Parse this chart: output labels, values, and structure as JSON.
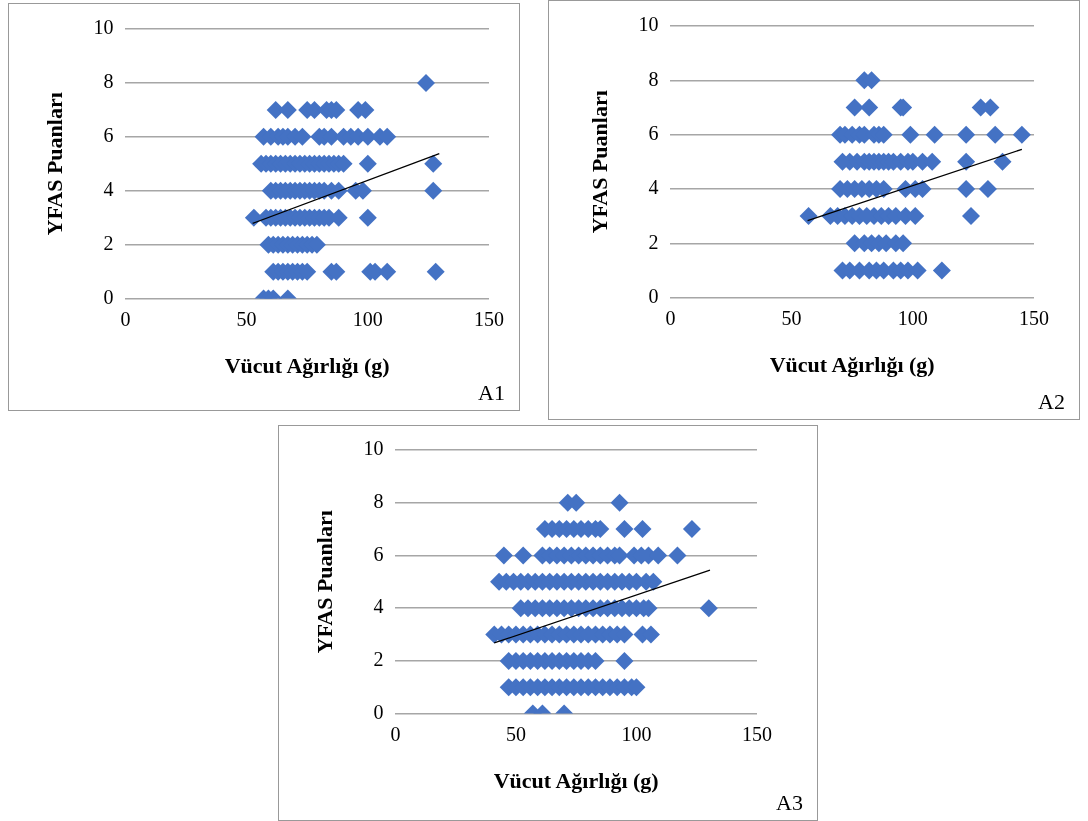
{
  "chart_data": [
    {
      "type": "scatter",
      "xlabel": "Vücut Ağırlığı (g)",
      "ylabel": "YFAS Puanları",
      "annotations": [
        "A1"
      ],
      "xlim": [
        0,
        150
      ],
      "xticks": [
        0,
        50,
        100,
        150
      ],
      "ylim": [
        0,
        10
      ],
      "yticks": [
        0,
        2,
        4,
        6,
        8,
        10
      ],
      "grid": "y",
      "series": [
        {
          "marker": "diamond",
          "color": "#4472c4",
          "x": [
            124,
            62,
            67,
            75,
            78,
            83,
            85,
            87,
            96,
            99,
            57,
            60,
            63,
            65,
            67,
            70,
            73,
            80,
            82,
            85,
            90,
            93,
            96,
            100,
            105,
            108,
            56,
            58,
            60,
            62,
            64,
            66,
            68,
            70,
            72,
            74,
            76,
            78,
            80,
            82,
            84,
            86,
            88,
            90,
            100,
            127,
            60,
            62,
            64,
            66,
            68,
            70,
            72,
            74,
            76,
            78,
            80,
            82,
            85,
            88,
            95,
            98,
            127,
            53,
            58,
            60,
            62,
            64,
            66,
            68,
            70,
            72,
            74,
            76,
            78,
            80,
            82,
            84,
            88,
            100,
            59,
            61,
            63,
            65,
            67,
            69,
            71,
            73,
            75,
            77,
            79,
            61,
            63,
            65,
            67,
            69,
            71,
            73,
            75,
            85,
            87,
            101,
            103,
            108,
            128,
            57,
            59,
            61,
            67
          ],
          "values": [
            8,
            7,
            7,
            7,
            7,
            7,
            7,
            7,
            7,
            7,
            6,
            6,
            6,
            6,
            6,
            6,
            6,
            6,
            6,
            6,
            6,
            6,
            6,
            6,
            6,
            6,
            5,
            5,
            5,
            5,
            5,
            5,
            5,
            5,
            5,
            5,
            5,
            5,
            5,
            5,
            5,
            5,
            5,
            5,
            5,
            5,
            4,
            4,
            4,
            4,
            4,
            4,
            4,
            4,
            4,
            4,
            4,
            4,
            4,
            4,
            4,
            4,
            4,
            3,
            3,
            3,
            3,
            3,
            3,
            3,
            3,
            3,
            3,
            3,
            3,
            3,
            3,
            3,
            3,
            3,
            2,
            2,
            2,
            2,
            2,
            2,
            2,
            2,
            2,
            2,
            2,
            1,
            1,
            1,
            1,
            1,
            1,
            1,
            1,
            1,
            1,
            1,
            1,
            1,
            1,
            0,
            0,
            0,
            0
          ]
        },
        {
          "type": "line",
          "marker": "none",
          "color": "#000000",
          "x": [
            52.5,
            129.5
          ],
          "values": [
            2.79,
            5.38
          ]
        }
      ]
    },
    {
      "type": "scatter",
      "xlabel": "Vücut Ağırlığı (g)",
      "ylabel": "YFAS Puanları",
      "annotations": [
        "A2"
      ],
      "xlim": [
        0,
        150
      ],
      "xticks": [
        0,
        50,
        100,
        150
      ],
      "ylim": [
        0,
        10
      ],
      "yticks": [
        0,
        2,
        4,
        6,
        8,
        10
      ],
      "grid": "y",
      "series": [
        {
          "marker": "diamond",
          "color": "#4472c4",
          "x": [
            80,
            83,
            76,
            82,
            95,
            96,
            128,
            132,
            70,
            72,
            75,
            78,
            80,
            84,
            86,
            88,
            99,
            109,
            122,
            134,
            145,
            71,
            74,
            77,
            80,
            82,
            84,
            86,
            88,
            90,
            92,
            95,
            98,
            100,
            104,
            108,
            122,
            137,
            70,
            73,
            76,
            79,
            82,
            85,
            88,
            97,
            101,
            104,
            122,
            131,
            57,
            66,
            69,
            72,
            75,
            78,
            81,
            84,
            87,
            90,
            93,
            97,
            101,
            124,
            76,
            80,
            83,
            86,
            89,
            93,
            96,
            71,
            74,
            78,
            82,
            85,
            88,
            92,
            95,
            98,
            102,
            112
          ],
          "values": [
            8,
            8,
            7,
            7,
            7,
            7,
            7,
            7,
            6,
            6,
            6,
            6,
            6,
            6,
            6,
            6,
            6,
            6,
            6,
            6,
            6,
            5,
            5,
            5,
            5,
            5,
            5,
            5,
            5,
            5,
            5,
            5,
            5,
            5,
            5,
            5,
            5,
            5,
            4,
            4,
            4,
            4,
            4,
            4,
            4,
            4,
            4,
            4,
            4,
            4,
            3,
            3,
            3,
            3,
            3,
            3,
            3,
            3,
            3,
            3,
            3,
            3,
            3,
            3,
            2,
            2,
            2,
            2,
            2,
            2,
            2,
            1,
            1,
            1,
            1,
            1,
            1,
            1,
            1,
            1,
            1,
            1
          ]
        },
        {
          "type": "line",
          "marker": "none",
          "color": "#000000",
          "x": [
            56.6,
            145
          ],
          "values": [
            2.83,
            5.46
          ]
        }
      ]
    },
    {
      "type": "scatter",
      "xlabel": "Vücut Ağırlığı (g)",
      "ylabel": "YFAS Puanları",
      "annotations": [
        "A3"
      ],
      "xlim": [
        0,
        150
      ],
      "xticks": [
        0,
        50,
        100,
        150
      ],
      "ylim": [
        0,
        10
      ],
      "yticks": [
        0,
        2,
        4,
        6,
        8,
        10
      ],
      "grid": "y",
      "series": [
        {
          "marker": "diamond",
          "color": "#4472c4",
          "x": [
            71.5,
            75,
            93,
            62,
            65,
            68,
            71,
            74,
            77,
            80,
            83,
            85,
            95,
            102.5,
            123,
            45,
            53,
            61,
            64,
            67,
            70,
            73,
            76,
            79,
            82,
            85,
            88,
            91,
            93,
            99,
            102,
            105,
            109,
            117,
            43,
            46,
            49,
            52,
            55,
            58,
            61,
            64,
            67,
            70,
            73,
            76,
            79,
            82,
            85,
            88,
            91,
            94,
            97,
            100,
            104,
            107,
            52,
            55,
            58,
            61,
            64,
            67,
            70,
            73,
            76,
            79,
            82,
            85,
            88,
            91,
            94,
            97,
            100,
            103,
            105,
            130,
            41,
            44,
            47,
            50,
            53,
            56,
            59,
            62,
            65,
            68,
            71,
            74,
            77,
            80,
            83,
            86,
            89,
            92,
            95,
            102.5,
            106,
            47,
            50,
            53,
            56,
            59,
            62,
            65,
            68,
            71,
            74,
            77,
            80,
            83,
            95,
            47,
            50,
            53,
            56,
            59,
            62,
            65,
            68,
            71,
            74,
            77,
            80,
            83,
            86,
            89,
            92,
            95,
            98,
            100,
            57,
            61,
            70
          ],
          "values": [
            8,
            8,
            8,
            7,
            7,
            7,
            7,
            7,
            7,
            7,
            7,
            7,
            7,
            7,
            7,
            6,
            6,
            6,
            6,
            6,
            6,
            6,
            6,
            6,
            6,
            6,
            6,
            6,
            6,
            6,
            6,
            6,
            6,
            6,
            5,
            5,
            5,
            5,
            5,
            5,
            5,
            5,
            5,
            5,
            5,
            5,
            5,
            5,
            5,
            5,
            5,
            5,
            5,
            5,
            5,
            5,
            4,
            4,
            4,
            4,
            4,
            4,
            4,
            4,
            4,
            4,
            4,
            4,
            4,
            4,
            4,
            4,
            4,
            4,
            4,
            4,
            3,
            3,
            3,
            3,
            3,
            3,
            3,
            3,
            3,
            3,
            3,
            3,
            3,
            3,
            3,
            3,
            3,
            3,
            3,
            3,
            3,
            2,
            2,
            2,
            2,
            2,
            2,
            2,
            2,
            2,
            2,
            2,
            2,
            2,
            2,
            1,
            1,
            1,
            1,
            1,
            1,
            1,
            1,
            1,
            1,
            1,
            1,
            1,
            1,
            1,
            1,
            1,
            1,
            1,
            0,
            0,
            0
          ]
        },
        {
          "type": "line",
          "marker": "none",
          "color": "#000000",
          "x": [
            41,
            130.5
          ],
          "values": [
            2.68,
            5.44
          ]
        }
      ]
    }
  ]
}
